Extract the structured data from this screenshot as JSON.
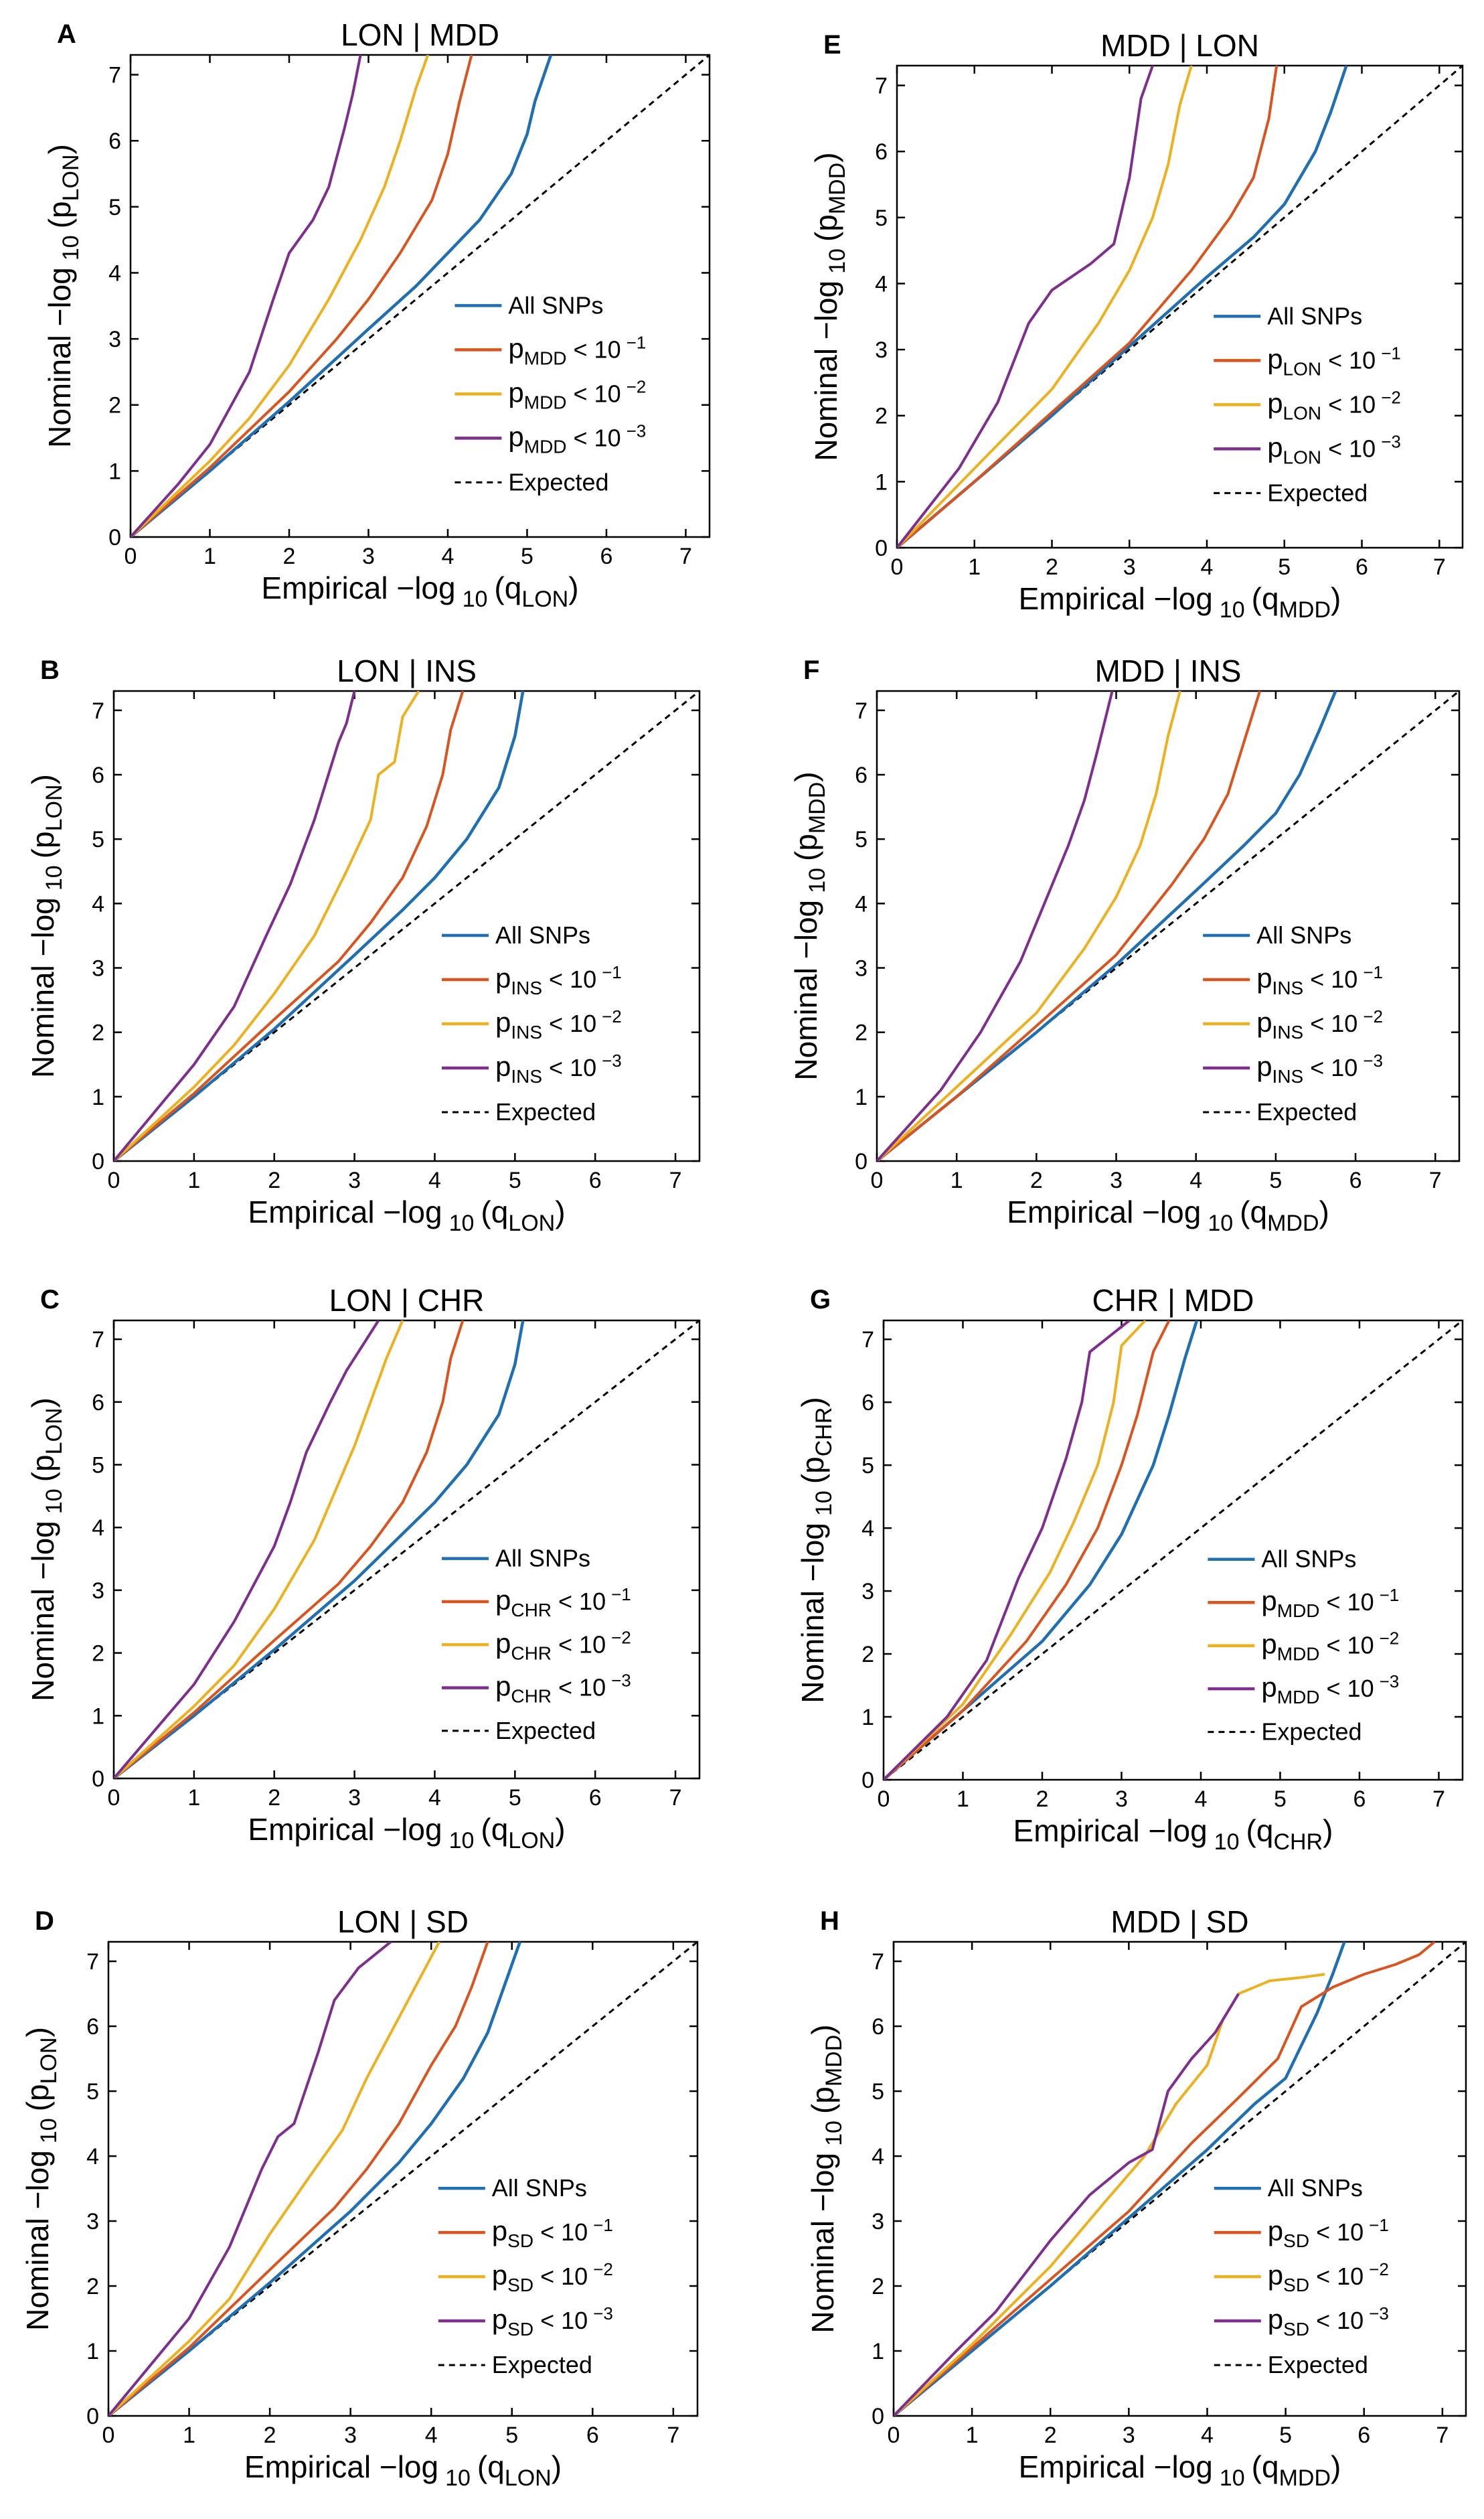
{
  "legend_items": {
    "all": "All SNPs",
    "expected": "Expected",
    "stratum_prefix": "p",
    "lt_ten": "< 10",
    "exp1": "−1",
    "exp2": "−2",
    "exp3": "−3"
  },
  "axis_text": {
    "y_prefix": "Nominal −log",
    "x_prefix": "Empirical −log",
    "sub10": "10",
    "p_letter": "(p",
    "q_letter": "(q",
    "close": ")"
  },
  "colors": {
    "all": "#1f6fb2",
    "s1": "#d9541e",
    "s2": "#edb120",
    "s3": "#7e2f8e",
    "expected": "#000000"
  },
  "chart_data": [
    {
      "type": "line",
      "panel": "A",
      "title": "LON | MDD",
      "y_trait": "LON",
      "x_trait": "LON",
      "cond": "MDD",
      "xlim": [
        0,
        7.3
      ],
      "ylim": [
        0,
        7.3
      ],
      "xticks": [
        "0",
        "1",
        "2",
        "3",
        "4",
        "5",
        "6",
        "7"
      ],
      "yticks": [
        "0",
        "1",
        "2",
        "3",
        "4",
        "5",
        "6",
        "7"
      ],
      "series": [
        {
          "name": "All SNPs",
          "x": [
            0,
            1,
            2,
            3,
            3.6,
            4,
            4.4,
            4.8,
            5.0,
            5.1,
            5.3
          ],
          "y": [
            0,
            1.0,
            2.05,
            3.15,
            3.8,
            4.3,
            4.8,
            5.5,
            6.1,
            6.6,
            7.3
          ]
        },
        {
          "name": "p<1e-1",
          "x": [
            0,
            1,
            2,
            2.6,
            3,
            3.4,
            3.8,
            4.0,
            4.15,
            4.3
          ],
          "y": [
            0,
            1.05,
            2.2,
            3.0,
            3.6,
            4.3,
            5.1,
            5.8,
            6.6,
            7.3
          ]
        },
        {
          "name": "p<1e-2",
          "x": [
            0,
            1,
            1.5,
            2,
            2.5,
            2.9,
            3.2,
            3.4,
            3.6,
            3.75
          ],
          "y": [
            0,
            1.15,
            1.8,
            2.6,
            3.6,
            4.5,
            5.3,
            6.0,
            6.8,
            7.3
          ]
        },
        {
          "name": "p<1e-3",
          "x": [
            0,
            0.6,
            1,
            1.5,
            1.8,
            2.0,
            2.3,
            2.5,
            2.7,
            2.8,
            2.9
          ],
          "y": [
            0,
            0.8,
            1.4,
            2.5,
            3.6,
            4.3,
            4.8,
            5.3,
            6.2,
            6.7,
            7.3
          ]
        }
      ]
    },
    {
      "type": "line",
      "panel": "B",
      "title": "LON | INS",
      "y_trait": "LON",
      "x_trait": "LON",
      "cond": "INS",
      "xlim": [
        0,
        7.3
      ],
      "ylim": [
        0,
        7.3
      ],
      "xticks": [
        "0",
        "1",
        "2",
        "3",
        "4",
        "5",
        "6",
        "7"
      ],
      "yticks": [
        "0",
        "1",
        "2",
        "3",
        "4",
        "5",
        "6",
        "7"
      ],
      "series": [
        {
          "name": "All SNPs",
          "x": [
            0,
            1,
            2,
            3,
            3.6,
            4,
            4.4,
            4.8,
            5.0,
            5.1
          ],
          "y": [
            0,
            1.0,
            2.05,
            3.2,
            3.9,
            4.4,
            5.0,
            5.8,
            6.6,
            7.3
          ]
        },
        {
          "name": "p<1e-1",
          "x": [
            0,
            1,
            2,
            2.8,
            3.2,
            3.6,
            3.9,
            4.1,
            4.2,
            4.35
          ],
          "y": [
            0,
            1.05,
            2.2,
            3.1,
            3.7,
            4.4,
            5.2,
            6.0,
            6.7,
            7.3
          ]
        },
        {
          "name": "p<1e-2",
          "x": [
            0,
            1,
            1.5,
            2,
            2.5,
            2.9,
            3.2,
            3.3,
            3.5,
            3.6,
            3.8
          ],
          "y": [
            0,
            1.15,
            1.8,
            2.6,
            3.5,
            4.5,
            5.3,
            6.0,
            6.2,
            6.9,
            7.3
          ]
        },
        {
          "name": "p<1e-3",
          "x": [
            0,
            0.6,
            1,
            1.5,
            1.9,
            2.2,
            2.5,
            2.7,
            2.8,
            2.9,
            3.0
          ],
          "y": [
            0,
            0.9,
            1.5,
            2.4,
            3.5,
            4.3,
            5.3,
            6.1,
            6.5,
            6.8,
            7.3
          ]
        }
      ]
    },
    {
      "type": "line",
      "panel": "C",
      "title": "LON | CHR",
      "y_trait": "LON",
      "x_trait": "LON",
      "cond": "CHR",
      "xlim": [
        0,
        7.3
      ],
      "ylim": [
        0,
        7.3
      ],
      "xticks": [
        "0",
        "1",
        "2",
        "3",
        "4",
        "5",
        "6",
        "7"
      ],
      "yticks": [
        "0",
        "1",
        "2",
        "3",
        "4",
        "5",
        "6",
        "7"
      ],
      "series": [
        {
          "name": "All SNPs",
          "x": [
            0,
            1,
            2,
            3,
            3.6,
            4,
            4.4,
            4.8,
            5.0,
            5.1
          ],
          "y": [
            0,
            1.0,
            2.05,
            3.15,
            3.9,
            4.4,
            5.0,
            5.8,
            6.6,
            7.3
          ]
        },
        {
          "name": "p<1e-1",
          "x": [
            0,
            1,
            2,
            2.8,
            3.2,
            3.6,
            3.9,
            4.1,
            4.2,
            4.35
          ],
          "y": [
            0,
            1.05,
            2.2,
            3.1,
            3.7,
            4.4,
            5.2,
            6.0,
            6.7,
            7.3
          ]
        },
        {
          "name": "p<1e-2",
          "x": [
            0,
            1,
            1.5,
            2,
            2.5,
            2.8,
            3.0,
            3.2,
            3.4,
            3.6
          ],
          "y": [
            0,
            1.15,
            1.8,
            2.7,
            3.8,
            4.7,
            5.3,
            6.0,
            6.7,
            7.3
          ]
        },
        {
          "name": "p<1e-3",
          "x": [
            0,
            0.6,
            1,
            1.5,
            2.0,
            2.2,
            2.4,
            2.7,
            2.9,
            3.1,
            3.3
          ],
          "y": [
            0,
            0.9,
            1.5,
            2.5,
            3.7,
            4.4,
            5.2,
            6.0,
            6.5,
            6.9,
            7.3
          ]
        }
      ]
    },
    {
      "type": "line",
      "panel": "D",
      "title": "LON | SD",
      "y_trait": "LON",
      "x_trait": "LON",
      "cond": "SD",
      "xlim": [
        0,
        7.3
      ],
      "ylim": [
        0,
        7.3
      ],
      "xticks": [
        "0",
        "1",
        "2",
        "3",
        "4",
        "5",
        "6",
        "7"
      ],
      "yticks": [
        "0",
        "1",
        "2",
        "3",
        "4",
        "5",
        "6",
        "7"
      ],
      "series": [
        {
          "name": "All SNPs",
          "x": [
            0,
            1,
            2,
            3,
            3.6,
            4,
            4.4,
            4.7,
            4.9,
            5.1
          ],
          "y": [
            0,
            1.0,
            2.05,
            3.15,
            3.9,
            4.5,
            5.2,
            5.9,
            6.6,
            7.3
          ]
        },
        {
          "name": "p<1e-1",
          "x": [
            0,
            1,
            2,
            2.8,
            3.2,
            3.6,
            4.0,
            4.3,
            4.5,
            4.7
          ],
          "y": [
            0,
            1.05,
            2.25,
            3.2,
            3.8,
            4.5,
            5.4,
            6.0,
            6.6,
            7.3
          ]
        },
        {
          "name": "p<1e-2",
          "x": [
            0,
            1,
            1.5,
            2,
            2.5,
            2.9,
            3.2,
            3.5,
            3.8,
            4.1
          ],
          "y": [
            0,
            1.15,
            1.8,
            2.8,
            3.7,
            4.4,
            5.2,
            5.9,
            6.6,
            7.3
          ]
        },
        {
          "name": "p<1e-3",
          "x": [
            0,
            0.6,
            1,
            1.5,
            1.9,
            2.1,
            2.3,
            2.6,
            2.8,
            3.1,
            3.5
          ],
          "y": [
            0,
            0.9,
            1.5,
            2.6,
            3.8,
            4.3,
            4.5,
            5.6,
            6.4,
            6.9,
            7.3
          ]
        }
      ]
    },
    {
      "type": "line",
      "panel": "E",
      "title": "MDD | LON",
      "y_trait": "MDD",
      "x_trait": "MDD",
      "cond": "LON",
      "xlim": [
        0,
        7.3
      ],
      "ylim": [
        0,
        7.3
      ],
      "xticks": [
        "0",
        "1",
        "2",
        "3",
        "4",
        "5",
        "6",
        "7"
      ],
      "yticks": [
        "0",
        "1",
        "2",
        "3",
        "4",
        "5",
        "6",
        "7"
      ],
      "series": [
        {
          "name": "All SNPs",
          "x": [
            0,
            1,
            2,
            3,
            4,
            4.6,
            5.0,
            5.4,
            5.6,
            5.8
          ],
          "y": [
            0,
            1.0,
            2.0,
            3.05,
            4.1,
            4.7,
            5.2,
            6.0,
            6.6,
            7.3
          ]
        },
        {
          "name": "p<1e-1",
          "x": [
            0,
            1,
            2,
            3,
            3.8,
            4.3,
            4.6,
            4.8,
            4.9
          ],
          "y": [
            0,
            1.0,
            2.05,
            3.1,
            4.2,
            5.0,
            5.6,
            6.5,
            7.3
          ]
        },
        {
          "name": "p<1e-2",
          "x": [
            0,
            1,
            2,
            2.6,
            3.0,
            3.3,
            3.5,
            3.65,
            3.8
          ],
          "y": [
            0,
            1.2,
            2.4,
            3.4,
            4.2,
            5.0,
            5.8,
            6.7,
            7.3
          ]
        },
        {
          "name": "p<1e-3",
          "x": [
            0,
            0.8,
            1.3,
            1.7,
            2.0,
            2.5,
            2.8,
            3.0,
            3.15,
            3.3
          ],
          "y": [
            0,
            1.2,
            2.2,
            3.4,
            3.9,
            4.3,
            4.6,
            5.6,
            6.8,
            7.3
          ]
        }
      ]
    },
    {
      "type": "line",
      "panel": "F",
      "title": "MDD | INS",
      "y_trait": "MDD",
      "x_trait": "MDD",
      "cond": "INS",
      "xlim": [
        0,
        7.3
      ],
      "ylim": [
        0,
        7.3
      ],
      "xticks": [
        "0",
        "1",
        "2",
        "3",
        "4",
        "5",
        "6",
        "7"
      ],
      "yticks": [
        "0",
        "1",
        "2",
        "3",
        "4",
        "5",
        "6",
        "7"
      ],
      "series": [
        {
          "name": "All SNPs",
          "x": [
            0,
            1,
            2,
            3,
            4,
            4.6,
            5.0,
            5.3,
            5.55,
            5.75
          ],
          "y": [
            0,
            1.0,
            2.0,
            3.05,
            4.2,
            4.9,
            5.4,
            6.0,
            6.7,
            7.3
          ]
        },
        {
          "name": "p<1e-1",
          "x": [
            0,
            1,
            2,
            3,
            3.7,
            4.1,
            4.4,
            4.6,
            4.8
          ],
          "y": [
            0,
            1.0,
            2.1,
            3.2,
            4.3,
            5.0,
            5.7,
            6.5,
            7.3
          ]
        },
        {
          "name": "p<1e-2",
          "x": [
            0,
            1,
            2,
            2.6,
            3.0,
            3.3,
            3.5,
            3.65,
            3.8
          ],
          "y": [
            0,
            1.15,
            2.3,
            3.3,
            4.1,
            4.9,
            5.7,
            6.6,
            7.3
          ]
        },
        {
          "name": "p<1e-3",
          "x": [
            0,
            0.8,
            1.3,
            1.8,
            2.1,
            2.4,
            2.6,
            2.75,
            2.85,
            2.95
          ],
          "y": [
            0,
            1.1,
            2.0,
            3.1,
            4.0,
            4.9,
            5.6,
            6.3,
            6.8,
            7.3
          ]
        }
      ]
    },
    {
      "type": "line",
      "panel": "G",
      "title": "CHR | MDD",
      "y_trait": "CHR",
      "x_trait": "CHR",
      "cond": "MDD",
      "xlim": [
        0,
        7.3
      ],
      "ylim": [
        0,
        7.3
      ],
      "xticks": [
        "0",
        "1",
        "2",
        "3",
        "4",
        "5",
        "6",
        "7"
      ],
      "yticks": [
        "0",
        "1",
        "2",
        "3",
        "4",
        "5",
        "6",
        "7"
      ],
      "series": [
        {
          "name": "All SNPs",
          "x": [
            0,
            1,
            2,
            2.6,
            3.0,
            3.4,
            3.6,
            3.8,
            3.95
          ],
          "y": [
            0,
            1.1,
            2.2,
            3.1,
            3.9,
            5.0,
            5.8,
            6.7,
            7.3
          ]
        },
        {
          "name": "p<1e-1",
          "x": [
            0,
            1,
            1.8,
            2.3,
            2.7,
            3.0,
            3.2,
            3.4,
            3.6
          ],
          "y": [
            0,
            1.1,
            2.2,
            3.1,
            4.0,
            5.0,
            5.8,
            6.8,
            7.3
          ]
        },
        {
          "name": "p<1e-2",
          "x": [
            0,
            1,
            1.6,
            2.1,
            2.4,
            2.7,
            2.9,
            3.0,
            3.3
          ],
          "y": [
            0,
            1.2,
            2.3,
            3.3,
            4.1,
            5.0,
            6.0,
            6.9,
            7.3
          ]
        },
        {
          "name": "p<1e-3",
          "x": [
            0,
            0.8,
            1.3,
            1.7,
            2.0,
            2.3,
            2.5,
            2.6,
            2.8,
            3.1
          ],
          "y": [
            0,
            1.0,
            1.9,
            3.2,
            4.0,
            5.1,
            6.0,
            6.8,
            7.0,
            7.3
          ]
        }
      ]
    },
    {
      "type": "line",
      "panel": "H",
      "title": "MDD | SD",
      "y_trait": "MDD",
      "x_trait": "MDD",
      "cond": "SD",
      "xlim": [
        0,
        7.3
      ],
      "ylim": [
        0,
        7.3
      ],
      "xticks": [
        "0",
        "1",
        "2",
        "3",
        "4",
        "5",
        "6",
        "7"
      ],
      "yticks": [
        "0",
        "1",
        "2",
        "3",
        "4",
        "5",
        "6",
        "7"
      ],
      "series": [
        {
          "name": "All SNPs",
          "x": [
            0,
            1,
            2,
            3,
            4,
            4.6,
            5.0,
            5.2,
            5.4,
            5.6,
            5.75
          ],
          "y": [
            0,
            1.0,
            2.0,
            3.05,
            4.1,
            4.8,
            5.2,
            5.7,
            6.2,
            6.8,
            7.3
          ]
        },
        {
          "name": "p<1e-1",
          "x": [
            0,
            1,
            2,
            3,
            3.8,
            4.4,
            4.9,
            5.2,
            5.6,
            6.0,
            6.4,
            6.7,
            6.9
          ],
          "y": [
            0,
            1.05,
            2.1,
            3.15,
            4.2,
            4.9,
            5.5,
            6.3,
            6.6,
            6.8,
            6.95,
            7.1,
            7.3
          ]
        },
        {
          "name": "p<1e-2",
          "x": [
            0,
            1,
            2,
            2.7,
            3.2,
            3.6,
            4.0,
            4.2,
            4.4,
            4.8,
            5.2,
            5.5
          ],
          "y": [
            0,
            1.1,
            2.3,
            3.3,
            4.0,
            4.8,
            5.4,
            6.1,
            6.5,
            6.7,
            6.75,
            6.8
          ]
        },
        {
          "name": "p<1e-3",
          "x": [
            0,
            0.8,
            1.3,
            2.0,
            2.5,
            3.0,
            3.3,
            3.5,
            3.8,
            4.1,
            4.3,
            4.4
          ],
          "y": [
            0,
            1.0,
            1.6,
            2.7,
            3.4,
            3.9,
            4.1,
            5.0,
            5.5,
            5.9,
            6.3,
            6.5
          ]
        }
      ]
    }
  ]
}
